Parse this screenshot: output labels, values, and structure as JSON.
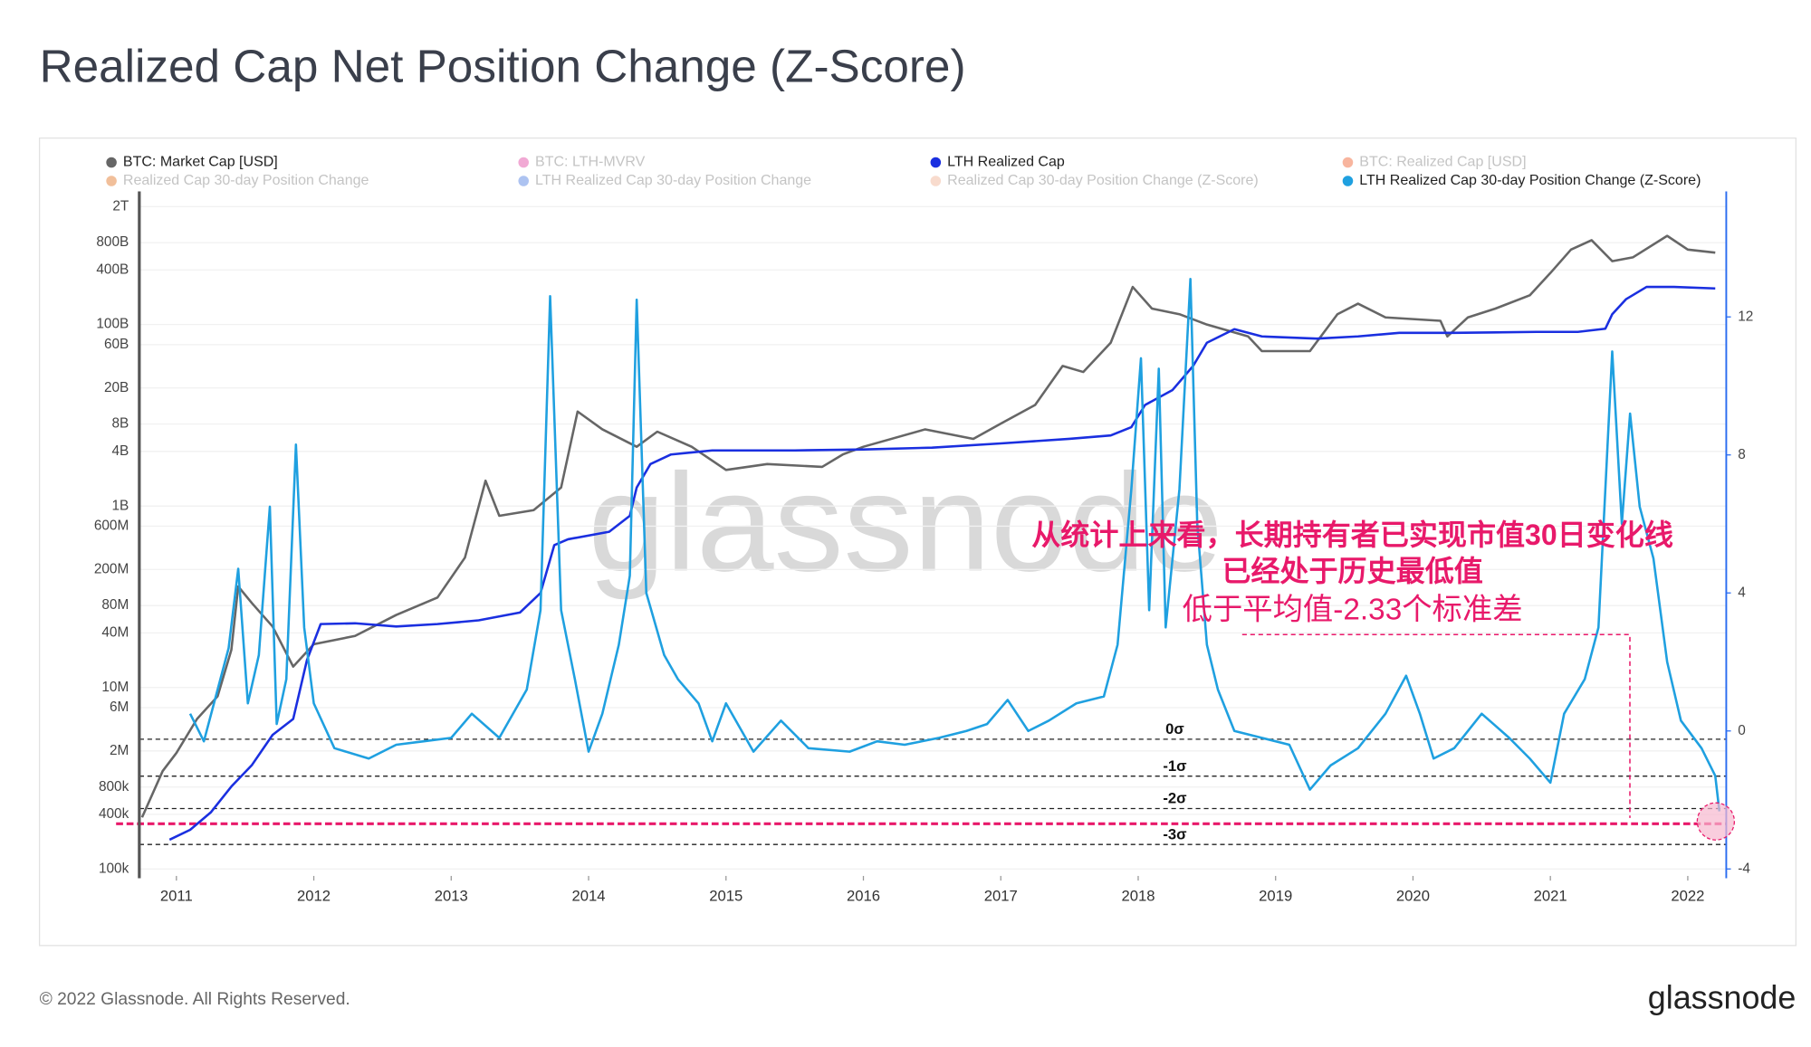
{
  "page": {
    "footer": "© 2022 Glassnode. All Rights Reserved.",
    "logo": "glassnode",
    "watermark": "glassnode"
  },
  "chart_data": {
    "type": "line",
    "title": "Realized Cap Net Position Change (Z-Score)",
    "xlim": [
      2010.73,
      2022.28
    ],
    "xticks": [
      2011,
      2012,
      2013,
      2014,
      2015,
      2016,
      2017,
      2018,
      2019,
      2020,
      2021,
      2022
    ],
    "ylog": true,
    "ylim": [
      100000,
      2000000000000
    ],
    "yticks": [
      {
        "value": 100000,
        "label": "100k"
      },
      {
        "value": 400000,
        "label": "400k"
      },
      {
        "value": 800000,
        "label": "800k"
      },
      {
        "value": 2000000,
        "label": "2M"
      },
      {
        "value": 6000000,
        "label": "6M"
      },
      {
        "value": 10000000,
        "label": "10M"
      },
      {
        "value": 40000000,
        "label": "40M"
      },
      {
        "value": 80000000,
        "label": "80M"
      },
      {
        "value": 200000000,
        "label": "200M"
      },
      {
        "value": 600000000,
        "label": "600M"
      },
      {
        "value": 1000000000,
        "label": "1B"
      },
      {
        "value": 4000000000,
        "label": "4B"
      },
      {
        "value": 8000000000,
        "label": "8B"
      },
      {
        "value": 20000000000,
        "label": "20B"
      },
      {
        "value": 60000000000,
        "label": "60B"
      },
      {
        "value": 100000000000,
        "label": "100B"
      },
      {
        "value": 400000000000,
        "label": "400B"
      },
      {
        "value": 800000000000,
        "label": "800B"
      },
      {
        "value": 2000000000000,
        "label": "2T"
      }
    ],
    "y2lim": [
      -4,
      15.2
    ],
    "y2ticks": [
      -4,
      0,
      4,
      8,
      12
    ],
    "grid": true,
    "series": [
      {
        "name": "BTC: Market Cap [USD]",
        "color": "#666666",
        "visible": true,
        "axis": "y",
        "x": [
          2010.75,
          2010.9,
          2011.0,
          2011.15,
          2011.3,
          2011.4,
          2011.45,
          2011.55,
          2011.7,
          2011.85,
          2012.0,
          2012.3,
          2012.6,
          2012.9,
          2013.1,
          2013.25,
          2013.35,
          2013.6,
          2013.8,
          2013.92,
          2014.1,
          2014.35,
          2014.5,
          2014.75,
          2015.0,
          2015.3,
          2015.7,
          2015.85,
          2016.0,
          2016.45,
          2016.8,
          2017.0,
          2017.25,
          2017.45,
          2017.6,
          2017.8,
          2017.96,
          2018.1,
          2018.3,
          2018.5,
          2018.8,
          2018.9,
          2019.25,
          2019.45,
          2019.6,
          2019.8,
          2020.2,
          2020.25,
          2020.4,
          2020.6,
          2020.85,
          2021.0,
          2021.15,
          2021.3,
          2021.45,
          2021.6,
          2021.85,
          2022.0,
          2022.2
        ],
        "values": [
          370000,
          1200000,
          1900000,
          4500000,
          8000000,
          26000000,
          130000000,
          85000000,
          47000000,
          17000000,
          30000000,
          37000000,
          63000000,
          98000000,
          270000000,
          1900000000,
          780000000,
          900000000,
          1600000000,
          11000000000,
          7000000000,
          4500000000,
          6600000000,
          4500000000,
          2500000000,
          2900000000,
          2700000000,
          3700000000,
          4500000000,
          7000000000,
          5500000000,
          8100000000,
          13000000000,
          35000000000,
          30000000000,
          63000000000,
          260000000000,
          150000000000,
          130000000000,
          100000000000,
          74000000000,
          51000000000,
          51000000000,
          130000000000,
          170000000000,
          120000000000,
          110000000000,
          74000000000,
          120000000000,
          150000000000,
          210000000000,
          370000000000,
          670000000000,
          850000000000,
          500000000000,
          550000000000,
          950000000000,
          670000000000,
          620000000000
        ]
      },
      {
        "name": "BTC: LTH-MVRV",
        "color": "#e040a0",
        "visible": false
      },
      {
        "name": "LTH Realized Cap",
        "color": "#1a2fe0",
        "visible": true,
        "axis": "y",
        "x": [
          2010.95,
          2011.1,
          2011.25,
          2011.4,
          2011.55,
          2011.7,
          2011.85,
          2011.95,
          2012.05,
          2012.3,
          2012.6,
          2012.9,
          2013.2,
          2013.5,
          2013.65,
          2013.75,
          2013.85,
          2014.15,
          2014.3,
          2014.35,
          2014.45,
          2014.6,
          2014.9,
          2015.5,
          2016.0,
          2016.5,
          2017.0,
          2017.5,
          2017.8,
          2017.95,
          2018.05,
          2018.25,
          2018.4,
          2018.5,
          2018.7,
          2018.9,
          2019.3,
          2019.6,
          2019.9,
          2020.3,
          2020.9,
          2021.2,
          2021.4,
          2021.45,
          2021.55,
          2021.7,
          2021.9,
          2022.2
        ],
        "values": [
          210000,
          270000,
          420000,
          810000,
          1400000,
          3000000,
          4500000,
          20000000,
          50000000,
          51000000,
          47000000,
          50000000,
          55000000,
          67000000,
          110000000,
          370000000,
          430000000,
          520000000,
          780000000,
          1600000000,
          2900000000,
          3700000000,
          4100000000,
          4100000000,
          4200000000,
          4400000000,
          4900000000,
          5500000000,
          6000000000,
          7400000000,
          13000000000,
          19000000000,
          35000000000,
          63000000000,
          89000000000,
          74000000000,
          70000000000,
          74000000000,
          81000000000,
          81000000000,
          83000000000,
          83000000000,
          90000000000,
          130000000000,
          190000000000,
          260000000000,
          260000000000,
          250000000000
        ]
      },
      {
        "name": "BTC: Realized Cap [USD]",
        "color": "#f05a28",
        "visible": false
      },
      {
        "name": "Realized Cap 30-day Position Change",
        "color": "#e07020",
        "visible": false
      },
      {
        "name": "LTH Realized Cap 30-day Position Change",
        "color": "#4a7ae0",
        "visible": false
      },
      {
        "name": "Realized Cap 30-day Position Change (Z-Score)",
        "color": "#f0b090",
        "visible": false
      },
      {
        "name": "LTH Realized Cap 30-day Position Change (Z-Score)",
        "color": "#1fa0e0",
        "visible": true,
        "axis": "y2",
        "x": [
          2011.1,
          2011.2,
          2011.3,
          2011.38,
          2011.45,
          2011.52,
          2011.6,
          2011.68,
          2011.73,
          2011.8,
          2011.87,
          2011.93,
          2012.0,
          2012.15,
          2012.4,
          2012.6,
          2012.8,
          2013.0,
          2013.15,
          2013.35,
          2013.55,
          2013.65,
          2013.72,
          2013.8,
          2013.9,
          2014.0,
          2014.1,
          2014.22,
          2014.3,
          2014.35,
          2014.42,
          2014.55,
          2014.65,
          2014.8,
          2014.9,
          2015.0,
          2015.2,
          2015.4,
          2015.6,
          2015.9,
          2016.1,
          2016.3,
          2016.55,
          2016.75,
          2016.9,
          2017.05,
          2017.2,
          2017.35,
          2017.55,
          2017.75,
          2017.85,
          2017.95,
          2018.02,
          2018.08,
          2018.15,
          2018.2,
          2018.3,
          2018.38,
          2018.43,
          2018.5,
          2018.58,
          2018.7,
          2018.9,
          2019.1,
          2019.25,
          2019.4,
          2019.6,
          2019.8,
          2019.95,
          2020.05,
          2020.15,
          2020.3,
          2020.5,
          2020.7,
          2020.85,
          2021.0,
          2021.1,
          2021.25,
          2021.35,
          2021.45,
          2021.52,
          2021.58,
          2021.65,
          2021.75,
          2021.85,
          2021.95,
          2022.1,
          2022.2,
          2022.23
        ],
        "values": [
          0.5,
          -0.3,
          1.2,
          2.4,
          4.7,
          0.8,
          2.2,
          6.5,
          0.2,
          1.5,
          8.3,
          3.0,
          0.8,
          -0.5,
          -0.8,
          -0.4,
          -0.3,
          -0.2,
          0.5,
          -0.2,
          1.2,
          3.5,
          12.6,
          3.5,
          1.5,
          -0.6,
          0.5,
          2.5,
          4.5,
          12.5,
          4.0,
          2.2,
          1.5,
          0.8,
          -0.3,
          0.8,
          -0.6,
          0.3,
          -0.5,
          -0.6,
          -0.3,
          -0.4,
          -0.2,
          0.0,
          0.2,
          0.9,
          0.0,
          0.3,
          0.8,
          1.0,
          2.5,
          7.0,
          10.8,
          3.5,
          10.5,
          3.0,
          7.0,
          13.1,
          6.0,
          2.5,
          1.2,
          0.0,
          -0.2,
          -0.4,
          -1.7,
          -1.0,
          -0.5,
          0.5,
          1.6,
          0.5,
          -0.8,
          -0.5,
          0.5,
          -0.2,
          -0.8,
          -1.5,
          0.5,
          1.5,
          3.0,
          11.0,
          6.0,
          9.2,
          6.5,
          5.0,
          2.0,
          0.3,
          -0.5,
          -1.3,
          -2.33
        ]
      }
    ],
    "reference_lines": [
      {
        "value": -0.24,
        "label": "0σ"
      },
      {
        "value": -1.31,
        "label": "-1σ"
      },
      {
        "value": -2.25,
        "label": "-2σ"
      },
      {
        "value": -3.29,
        "label": "-3σ"
      }
    ],
    "marker_line": {
      "value": -2.69,
      "color": "#e8196a"
    },
    "annotations": [
      "从统计上来看，长期持有者已实现市值30日变化线",
      "已经处于历史最低值",
      "低于平均值-2.33个标准差"
    ]
  }
}
